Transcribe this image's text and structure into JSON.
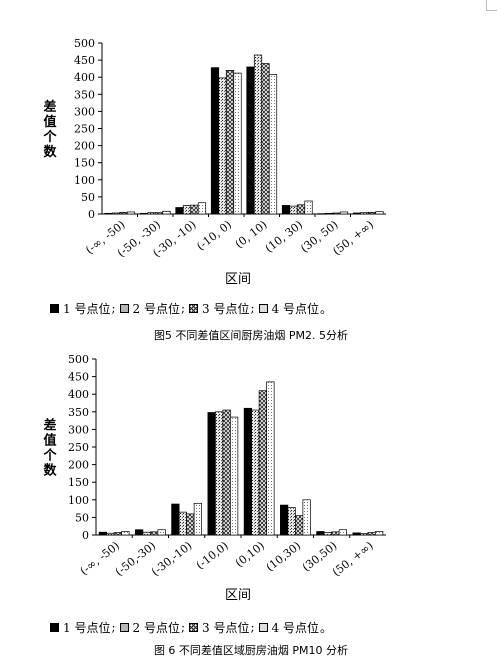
{
  "colors": {
    "bar_outline": "#000000",
    "s1": "#000000",
    "s2": "#e8e8e8",
    "s3": "#f4f4f4",
    "s4": "#ffffff"
  },
  "legend": {
    "items": [
      "1 号点位",
      "2 号点位",
      "3 号点位",
      "4 号点位"
    ],
    "separator": ";",
    "end": "。"
  },
  "chart_data": [
    {
      "type": "bar",
      "title": "",
      "caption": "图5 不同差值区间厨房油烟 PM2. 5分析",
      "xlabel": "区间",
      "ylabel": "差值个数",
      "ylim": [
        0,
        500
      ],
      "yticks": [
        0,
        50,
        100,
        150,
        200,
        250,
        300,
        350,
        400,
        450,
        500
      ],
      "grid": false,
      "legend_position": "bottom",
      "categories": [
        "(-∞, -50)",
        "(-50, -30)",
        "(-30, -10)",
        "(-10, 0)",
        "(0, 10)",
        "(10, 30)",
        "(30, 50)",
        "(50, +∞)"
      ],
      "series": [
        {
          "name": "1 号点位",
          "values": [
            2,
            2,
            19,
            428,
            430,
            25,
            1,
            3
          ]
        },
        {
          "name": "2 号点位",
          "values": [
            3,
            4,
            25,
            398,
            465,
            23,
            2,
            4
          ]
        },
        {
          "name": "3 号点位",
          "values": [
            5,
            4,
            26,
            420,
            440,
            27,
            3,
            5
          ]
        },
        {
          "name": "4 号点位",
          "values": [
            6,
            8,
            33,
            412,
            408,
            38,
            6,
            7
          ]
        }
      ]
    },
    {
      "type": "bar",
      "title": "",
      "caption": "图 6 不同差值区域厨房油烟 PM10 分析",
      "xlabel": "区间",
      "ylabel": "差值个数",
      "ylim": [
        0,
        500
      ],
      "yticks": [
        0,
        50,
        100,
        150,
        200,
        250,
        300,
        350,
        400,
        450,
        500
      ],
      "grid": false,
      "legend_position": "bottom",
      "categories": [
        "(-∞, -50)",
        "(-50,-30)",
        "(-30,-10)",
        "(-10,0)",
        "(0,10)",
        "(10,30)",
        "(30,50)",
        "(50, +∞)"
      ],
      "series": [
        {
          "name": "1 号点位",
          "values": [
            8,
            15,
            88,
            348,
            360,
            85,
            10,
            6
          ]
        },
        {
          "name": "2 号点位",
          "values": [
            5,
            8,
            65,
            350,
            355,
            78,
            7,
            4
          ]
        },
        {
          "name": "3 号点位",
          "values": [
            7,
            9,
            60,
            355,
            410,
            55,
            9,
            7
          ]
        },
        {
          "name": "4 号点位",
          "values": [
            10,
            15,
            90,
            335,
            435,
            100,
            15,
            10
          ]
        }
      ]
    }
  ]
}
